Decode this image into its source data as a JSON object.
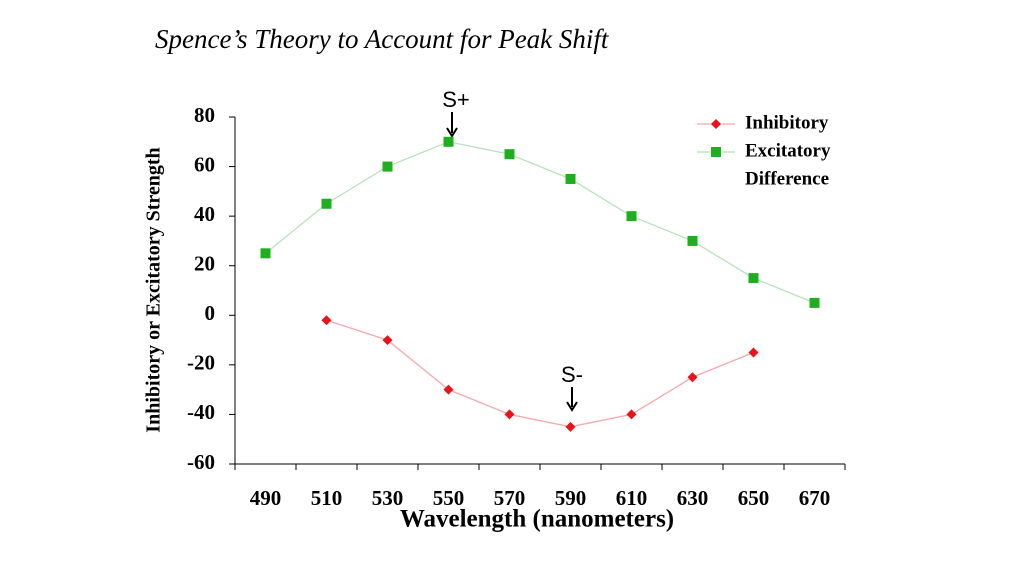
{
  "chart_data": {
    "type": "line",
    "title": "Spence’s Theory to Account for  Peak Shift",
    "x_label": "Wavelength (nanometers)",
    "y_label": "Inhibitory or Excitatory Strength",
    "categories": [
      "490",
      "510",
      "530",
      "550",
      "570",
      "590",
      "610",
      "630",
      "650",
      "670"
    ],
    "series": [
      {
        "name": "Inhibitory",
        "color": "#e8141c",
        "line_color": "#f5a8ab",
        "marker": "diamond",
        "values": [
          null,
          -2,
          -10,
          -30,
          -40,
          -45,
          -40,
          -25,
          -15,
          null
        ]
      },
      {
        "name": "Excitatory",
        "color": "#1fae1f",
        "line_color": "#b9e2b9",
        "marker": "square",
        "values": [
          25,
          45,
          60,
          70,
          65,
          55,
          40,
          30,
          15,
          5
        ]
      },
      {
        "name": "Difference",
        "color": "#ffffff",
        "line_color": "#ffffff",
        "marker": "none",
        "values": [
          null,
          null,
          null,
          null,
          null,
          null,
          null,
          null,
          null,
          null
        ]
      }
    ],
    "annotations": [
      {
        "text": "S+"
      },
      {
        "text": "S-"
      }
    ],
    "ylim": [
      -60,
      80
    ],
    "yticks": [
      -60,
      -40,
      -20,
      0,
      20,
      40,
      60,
      80
    ],
    "grid": false,
    "legend": "top-right"
  }
}
